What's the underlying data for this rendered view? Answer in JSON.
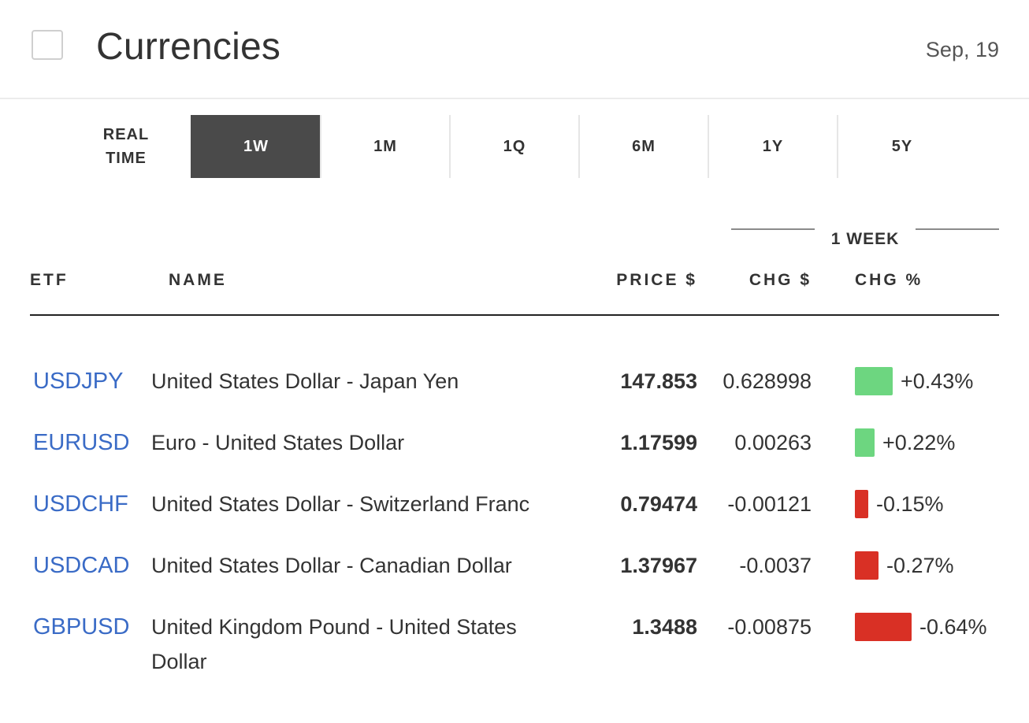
{
  "header": {
    "title": "Currencies",
    "date": "Sep, 19"
  },
  "tabs": [
    {
      "label": "REAL\nTIME",
      "active": false
    },
    {
      "label": "1W",
      "active": true
    },
    {
      "label": "1M",
      "active": false
    },
    {
      "label": "1Q",
      "active": false
    },
    {
      "label": "6M",
      "active": false
    },
    {
      "label": "1Y",
      "active": false
    },
    {
      "label": "5Y",
      "active": false
    }
  ],
  "group_label": "1 WEEK",
  "columns": {
    "etf": "ETF",
    "name": "NAME",
    "price": "PRICE $",
    "chg": "CHG $",
    "pct": "CHG %"
  },
  "rows": [
    {
      "symbol": "USDJPY",
      "name": "United States Dollar - Japan Yen",
      "price": "147.853",
      "chg": "0.628998",
      "pct": "+0.43%",
      "pct_value": 0.43
    },
    {
      "symbol": "EURUSD",
      "name": "Euro - United States Dollar",
      "price": "1.17599",
      "chg": "0.00263",
      "pct": "+0.22%",
      "pct_value": 0.22
    },
    {
      "symbol": "USDCHF",
      "name": "United States Dollar - Switzerland Franc",
      "price": "0.79474",
      "chg": "-0.00121",
      "pct": "-0.15%",
      "pct_value": -0.15
    },
    {
      "symbol": "USDCAD",
      "name": "United States Dollar - Canadian Dollar",
      "price": "1.37967",
      "chg": "-0.0037",
      "pct": "-0.27%",
      "pct_value": -0.27
    },
    {
      "symbol": "GBPUSD",
      "name": "United Kingdom Pound - United States Dollar",
      "price": "1.3488",
      "chg": "-0.00875",
      "pct": "-0.64%",
      "pct_value": -0.64
    }
  ],
  "colors": {
    "link": "#3a6bc6",
    "positive": "#6dd680",
    "negative": "#d93025",
    "active_tab": "#4a4a4a"
  }
}
